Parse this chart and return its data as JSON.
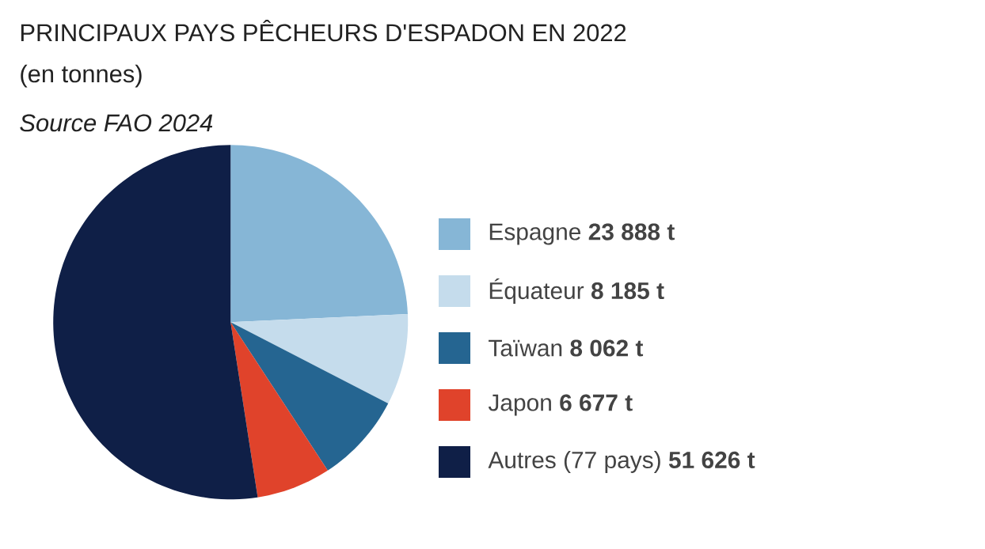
{
  "chart_data": {
    "type": "pie",
    "title": "PRINCIPAUX PAYS PÊCHEURS D'ESPADON EN 2022",
    "subtitle": "(en tonnes)",
    "annotations": [
      "Source FAO 2024"
    ],
    "categories": [
      "Espagne",
      "Équateur",
      "Taïwan",
      "Japon",
      "Autres (77 pays)"
    ],
    "values": [
      23888,
      8185,
      8062,
      6677,
      51626
    ],
    "value_labels": [
      "23 888 t",
      "8 185 t",
      "8 062 t",
      "6 677 t",
      "51 626 t"
    ],
    "colors": [
      "#86b6d6",
      "#c5dcec",
      "#256591",
      "#e0432b",
      "#0f1f47"
    ],
    "legend": "right"
  }
}
